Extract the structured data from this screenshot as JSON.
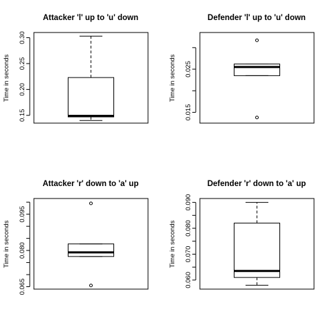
{
  "chart_data": [
    {
      "type": "boxplot",
      "title": "Attacker 'l' up to 'u' down",
      "ylabel": "Time in seconds",
      "ylim": [
        0.135,
        0.31
      ],
      "yticks": [
        0.15,
        0.2,
        0.25,
        0.3
      ],
      "ytick_labels": [
        "0.15",
        "0.20",
        "0.25",
        "0.30"
      ],
      "box": {
        "whisker_low": 0.14,
        "q1": 0.147,
        "median": 0.149,
        "q3": 0.223,
        "whisker_high": 0.303
      },
      "outliers": []
    },
    {
      "type": "boxplot",
      "title": "Defender 'l' up to 'u' down",
      "ylabel": "Time in seconds",
      "ylim": [
        0.0125,
        0.0335
      ],
      "yticks": [
        0.015,
        0.02,
        0.025,
        0.03
      ],
      "ytick_labels": [
        "0.015",
        "",
        "0.025",
        ""
      ],
      "box": {
        "whisker_low": 0.0235,
        "q1": 0.0235,
        "median": 0.0255,
        "q3": 0.0262,
        "whisker_high": 0.0262
      },
      "outliers": [
        0.0317,
        0.0138
      ]
    },
    {
      "type": "boxplot",
      "title": "Attacker 'r' down to 'a' up",
      "ylabel": "Time in seconds",
      "ylim": [
        0.064,
        0.1015
      ],
      "yticks": [
        0.065,
        0.07,
        0.075,
        0.08,
        0.085,
        0.09,
        0.095,
        0.1
      ],
      "ytick_labels": [
        "0.065",
        "",
        "",
        "0.080",
        "",
        "",
        "0.095",
        ""
      ],
      "box": {
        "whisker_low": 0.0775,
        "q1": 0.0775,
        "median": 0.0792,
        "q3": 0.0827,
        "whisker_high": 0.0827
      },
      "outliers": [
        0.0995,
        0.0655
      ]
    },
    {
      "type": "boxplot",
      "title": "Defender 'r' down to 'a' up",
      "ylabel": "Time in seconds",
      "ylim": [
        0.0565,
        0.0915
      ],
      "yticks": [
        0.06,
        0.065,
        0.07,
        0.075,
        0.08,
        0.085,
        0.09
      ],
      "ytick_labels": [
        "0.060",
        "",
        "0.070",
        "",
        "0.080",
        "",
        "0.090"
      ],
      "box": {
        "whisker_low": 0.058,
        "q1": 0.061,
        "median": 0.0635,
        "q3": 0.082,
        "whisker_high": 0.09
      },
      "outliers": []
    }
  ]
}
